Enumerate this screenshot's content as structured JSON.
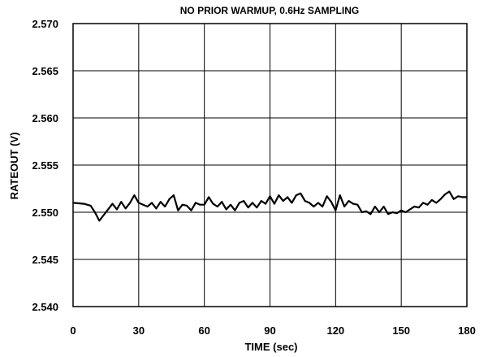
{
  "chart_data": {
    "type": "line",
    "title": "NO PRIOR WARMUP, 0.6Hz SAMPLING",
    "xlabel": "TIME (sec)",
    "ylabel": "RATEOUT (V)",
    "xlim": [
      0,
      180
    ],
    "ylim": [
      2.54,
      2.57
    ],
    "xticks": [
      "0",
      "30",
      "60",
      "90",
      "120",
      "150",
      "180"
    ],
    "yticks": [
      "2.540",
      "2.545",
      "2.550",
      "2.555",
      "2.560",
      "2.565",
      "2.570"
    ],
    "xtick_values": [
      0,
      30,
      60,
      90,
      120,
      150,
      180
    ],
    "ytick_values": [
      2.54,
      2.545,
      2.55,
      2.555,
      2.56,
      2.565,
      2.57
    ],
    "grid": true,
    "legend": "none",
    "series": [
      {
        "color": "#000000",
        "x": [
          0,
          5,
          8,
          10,
          12,
          14,
          16,
          18,
          20,
          22,
          24,
          26,
          28,
          30,
          32,
          34,
          36,
          38,
          40,
          42,
          44,
          46,
          48,
          50,
          52,
          54,
          56,
          58,
          60,
          62,
          64,
          66,
          68,
          70,
          72,
          74,
          76,
          78,
          80,
          82,
          84,
          86,
          88,
          90,
          92,
          94,
          96,
          98,
          100,
          102,
          104,
          106,
          108,
          110,
          112,
          114,
          116,
          118,
          120,
          122,
          124,
          126,
          128,
          130,
          132,
          134,
          136,
          138,
          140,
          142,
          144,
          146,
          148,
          150,
          152,
          154,
          156,
          158,
          160,
          162,
          164,
          166,
          168,
          170,
          172,
          174,
          176,
          178,
          180
        ],
        "y": [
          2.551,
          2.5509,
          2.5507,
          2.55,
          2.5491,
          2.5497,
          2.5503,
          2.5509,
          2.5503,
          2.5511,
          2.5504,
          2.551,
          2.5518,
          2.551,
          2.5508,
          2.5506,
          2.551,
          2.5504,
          2.5511,
          2.5506,
          2.5514,
          2.5518,
          2.5502,
          2.5508,
          2.5507,
          2.5502,
          2.551,
          2.5508,
          2.5508,
          2.5516,
          2.5509,
          2.5506,
          2.5511,
          2.5503,
          2.5508,
          2.5502,
          2.551,
          2.5512,
          2.5505,
          2.551,
          2.5505,
          2.5512,
          2.5509,
          2.5517,
          2.5509,
          2.5518,
          2.5512,
          2.5516,
          2.551,
          2.5518,
          2.552,
          2.5512,
          2.551,
          2.5506,
          2.551,
          2.5506,
          2.5517,
          2.5511,
          2.5502,
          2.5518,
          2.5506,
          2.5512,
          2.5509,
          2.5508,
          2.55,
          2.5501,
          2.5498,
          2.5506,
          2.55,
          2.5506,
          2.5498,
          2.55,
          2.5499,
          2.5502,
          2.55,
          2.5503,
          2.5506,
          2.5505,
          2.551,
          2.5508,
          2.5513,
          2.551,
          2.5514,
          2.5519,
          2.5522,
          2.5514,
          2.5517,
          2.5516,
          2.5516
        ]
      }
    ]
  }
}
